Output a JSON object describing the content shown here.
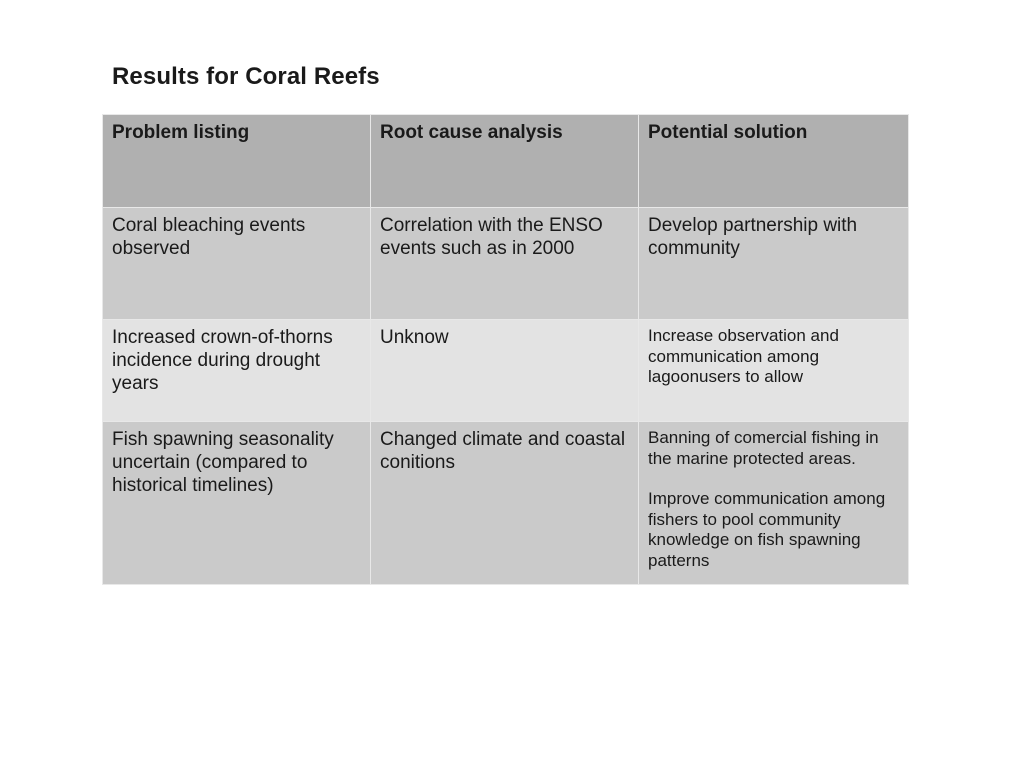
{
  "title": "Results for Coral Reefs",
  "table": {
    "headers": [
      "Problem listing",
      "Root cause analysis",
      "Potential solution"
    ],
    "rows": [
      {
        "problem": "Coral bleaching events observed",
        "cause": "Correlation with the ENSO events such as in 2000",
        "solution": [
          "Develop partnership with community"
        ]
      },
      {
        "problem": "Increased crown-of-thorns incidence during drought years",
        "cause": "Unknow",
        "solution": [
          "Increase observation and communication among lagoonusers to allow"
        ]
      },
      {
        "problem": "Fish spawning seasonality uncertain (compared to historical timelines)",
        "cause": "Changed climate and coastal conitions",
        "solution": [
          "Banning of comercial fishing in the marine protected areas.",
          "Improve communication among fishers to pool community knowledge on fish spawning patterns"
        ]
      }
    ]
  }
}
